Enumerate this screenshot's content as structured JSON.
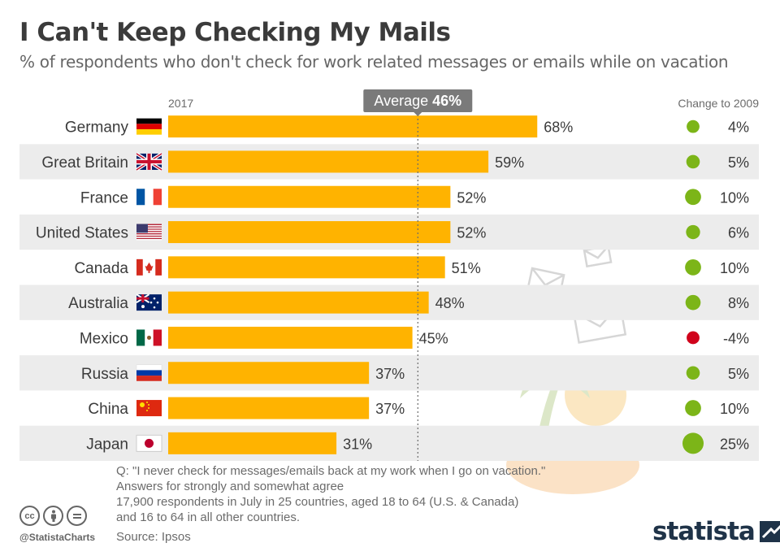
{
  "header": {
    "title": "I Can't Keep Checking My Mails",
    "subtitle": "% of respondents who don't check for work related messages or emails while on vacation"
  },
  "chart_data": {
    "type": "bar",
    "orientation": "horizontal",
    "year_label": "2017",
    "change_header": "Change to 2009",
    "average": {
      "label": "Average",
      "value": 46,
      "value_label": "46%"
    },
    "categories": [
      "Germany",
      "Great Britain",
      "France",
      "United States",
      "Canada",
      "Australia",
      "Mexico",
      "Russia",
      "China",
      "Japan"
    ],
    "values": [
      68,
      59,
      52,
      52,
      51,
      48,
      45,
      37,
      37,
      31
    ],
    "value_labels": [
      "68%",
      "59%",
      "52%",
      "52%",
      "51%",
      "48%",
      "45%",
      "37%",
      "37%",
      "31%"
    ],
    "change_values": [
      4,
      5,
      10,
      6,
      10,
      8,
      -4,
      5,
      10,
      25
    ],
    "change_labels": [
      "4%",
      "5%",
      "10%",
      "6%",
      "10%",
      "8%",
      "-4%",
      "5%",
      "10%",
      "25%"
    ],
    "xlim": [
      0,
      100
    ],
    "colors": {
      "bar": "#FFB300",
      "positive": "#7CB518",
      "negative": "#D0021B",
      "row_shade": "#ECECEC",
      "avg_badge": "#7A7A7A"
    }
  },
  "notes": {
    "lines": [
      "Q: \"I never check for messages/emails back at my work when I go on vacation.\"",
      "Answers for strongly and somewhat agree",
      "17,900 respondents in July in 25 countries, aged 18 to 64 (U.S. & Canada)",
      "and 16 to 64 in all other countries."
    ],
    "source": "Source: Ipsos"
  },
  "footer": {
    "handle": "@StatistaCharts",
    "cc_icons": [
      "cc-icon",
      "by-icon",
      "nd-icon"
    ],
    "logo_text": "statista"
  }
}
